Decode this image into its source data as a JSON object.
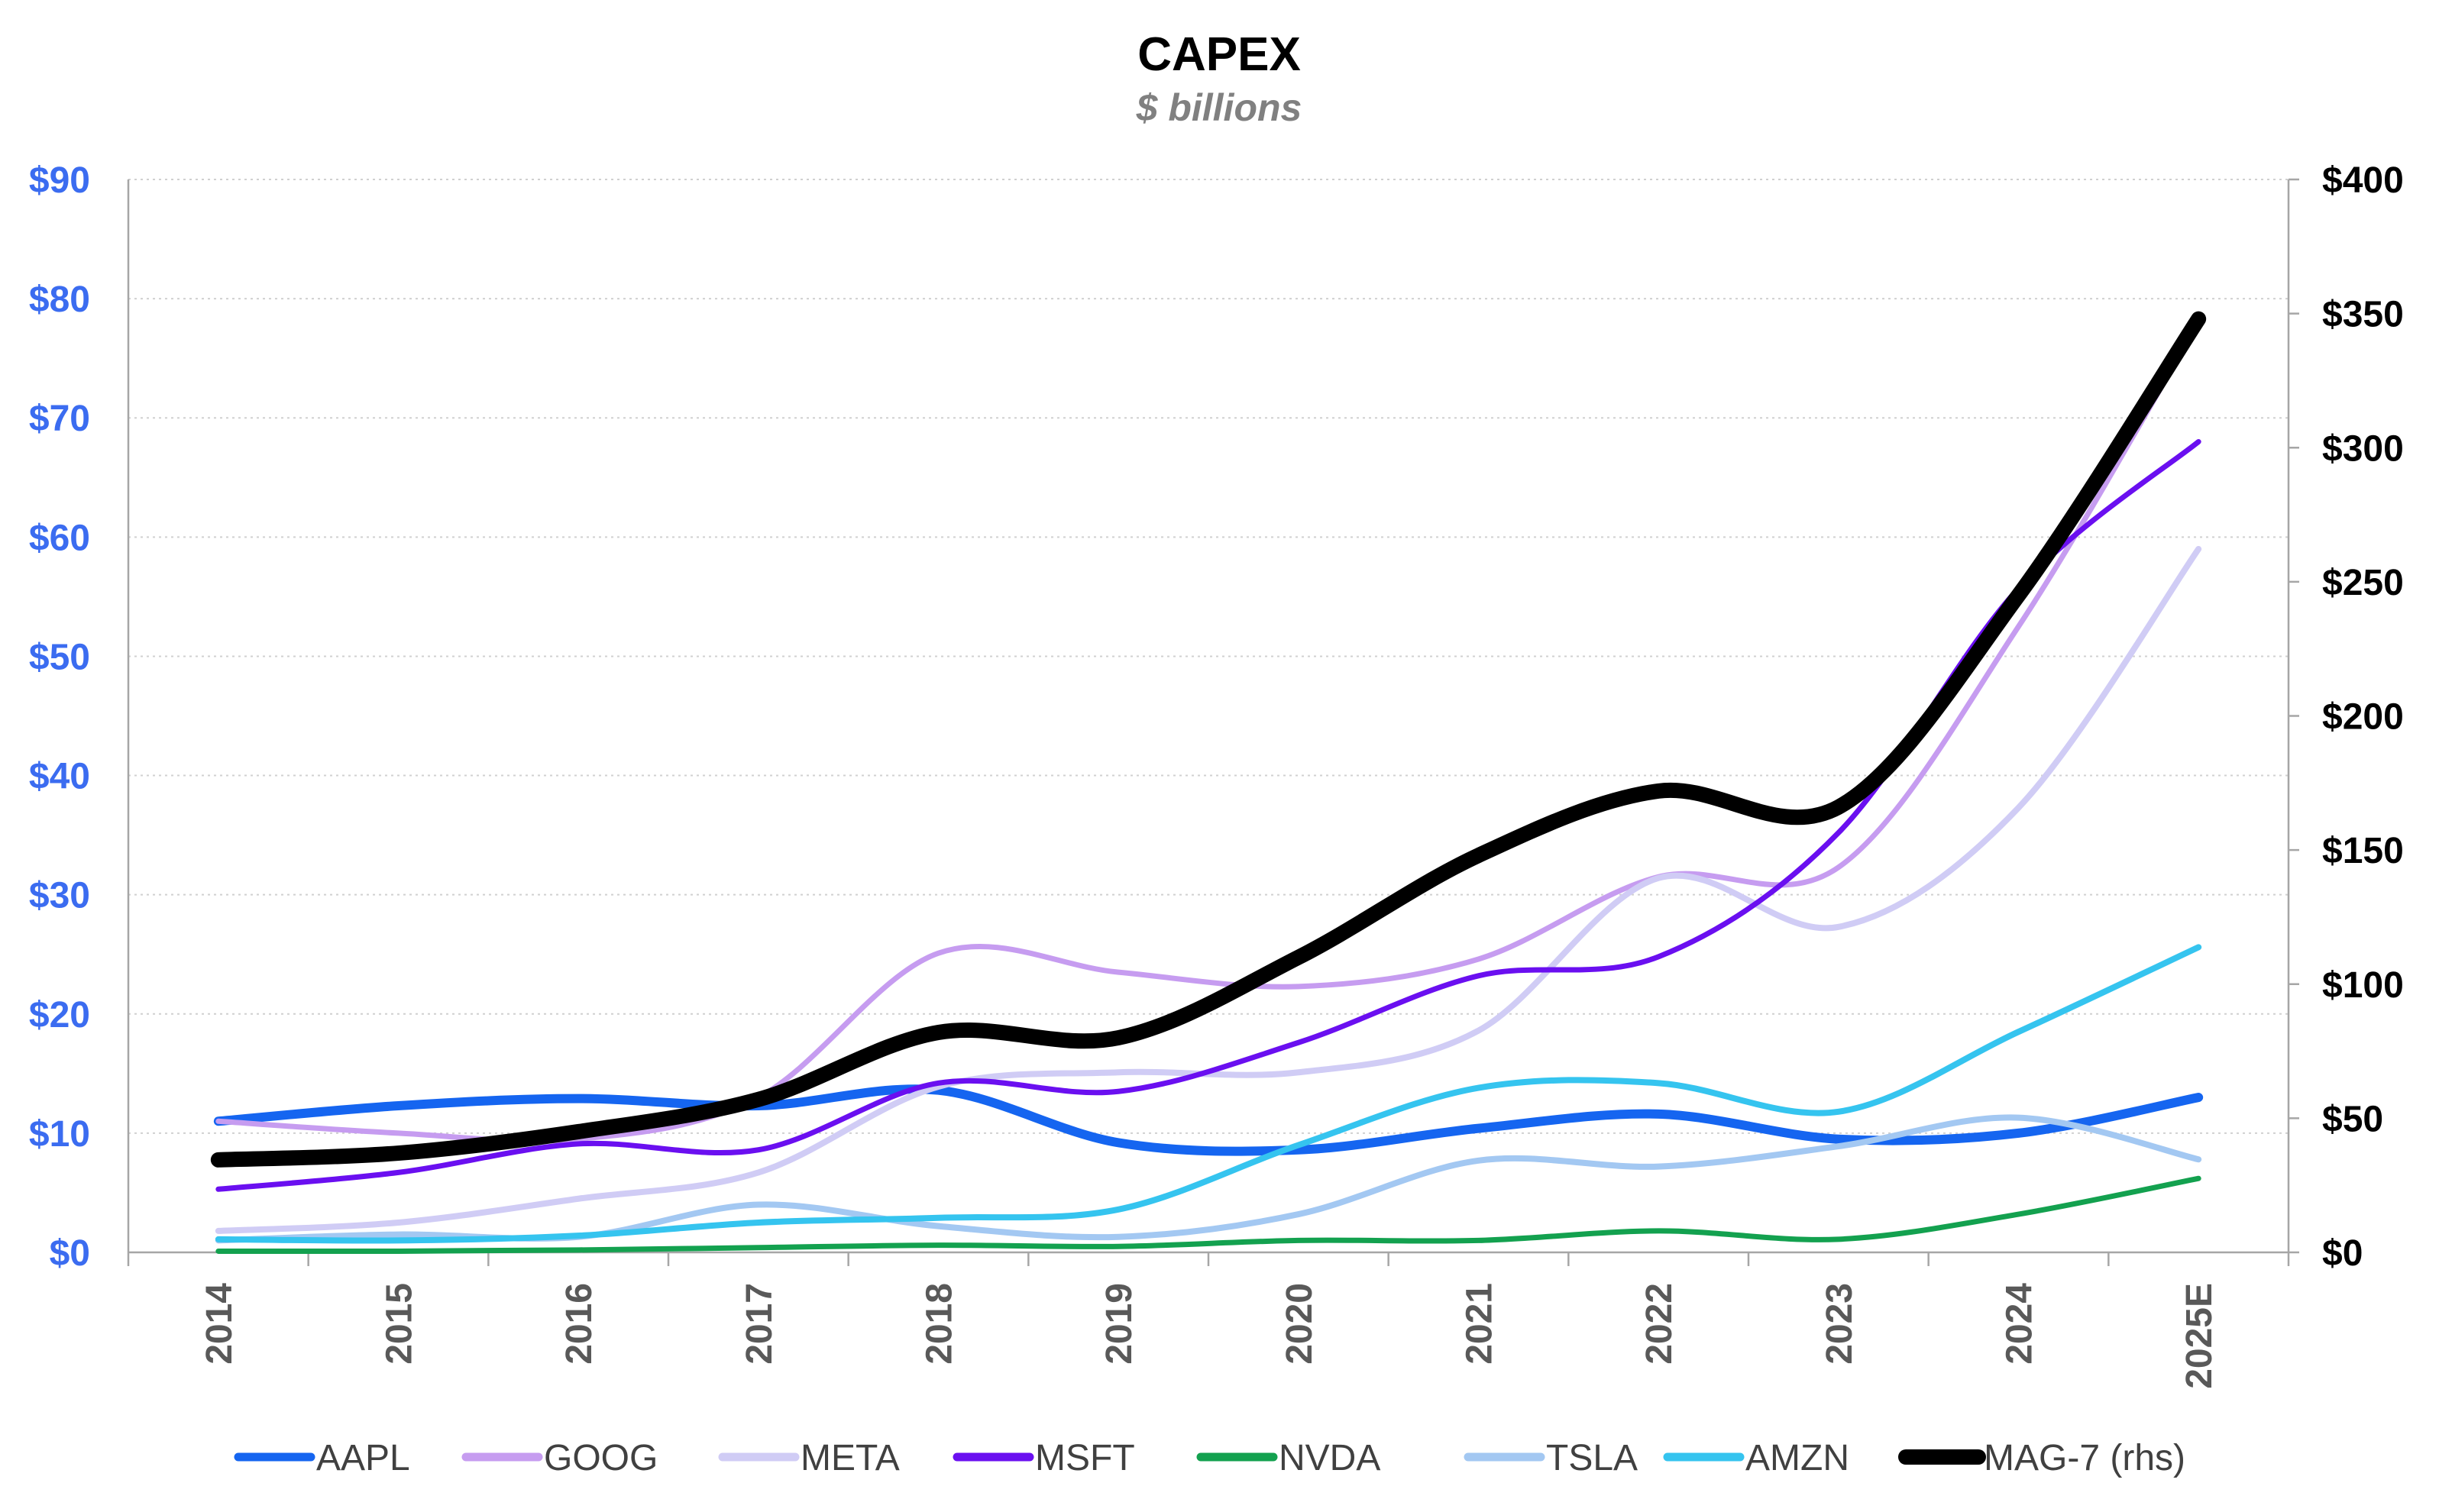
{
  "chart_data": {
    "type": "line",
    "title": "CAPEX",
    "subtitle": "$ billions",
    "categories": [
      "2014",
      "2015",
      "2016",
      "2017",
      "2018",
      "2019",
      "2020",
      "2021",
      "2022",
      "2023",
      "2024",
      "2025E"
    ],
    "left_axis": {
      "min": 0,
      "max": 90,
      "step": 10,
      "tick_labels": [
        "$0",
        "$10",
        "$20",
        "$30",
        "$40",
        "$50",
        "$60",
        "$70",
        "$80",
        "$90"
      ]
    },
    "right_axis": {
      "min": 0,
      "max": 400,
      "step": 50,
      "tick_labels": [
        "$0",
        "$50",
        "$100",
        "$150",
        "$200",
        "$250",
        "$300",
        "$350",
        "$400"
      ]
    },
    "grid": true,
    "legend_position": "bottom",
    "series": [
      {
        "name": "AAPL",
        "axis": "left",
        "color": "#1565f0",
        "width": 12,
        "values": [
          11.0,
          12.3,
          12.9,
          12.3,
          13.6,
          9.2,
          8.6,
          10.4,
          11.6,
          9.5,
          10.0,
          13.0
        ]
      },
      {
        "name": "GOOG",
        "axis": "left",
        "color": "#c69cf0",
        "width": 7,
        "values": [
          11.0,
          10.0,
          9.5,
          13.0,
          25.1,
          23.5,
          22.3,
          24.6,
          31.5,
          32.3,
          52.5,
          78.0
        ]
      },
      {
        "name": "META",
        "axis": "left",
        "color": "#d0ccf5",
        "width": 8,
        "values": [
          1.8,
          2.5,
          4.5,
          6.7,
          13.9,
          15.1,
          15.1,
          18.6,
          31.4,
          27.3,
          37.3,
          59.0
        ]
      },
      {
        "name": "MSFT",
        "axis": "left",
        "color": "#6a0ff0",
        "width": 7,
        "values": [
          5.3,
          6.7,
          9.1,
          8.6,
          14.2,
          13.5,
          17.6,
          23.2,
          24.8,
          35.2,
          55.7,
          68.0
        ]
      },
      {
        "name": "NVDA",
        "axis": "left",
        "color": "#13a14f",
        "width": 7,
        "values": [
          0.1,
          0.1,
          0.2,
          0.4,
          0.6,
          0.5,
          1.0,
          1.0,
          1.8,
          1.1,
          3.2,
          6.2
        ]
      },
      {
        "name": "TSLA",
        "axis": "left",
        "color": "#a3c8f2",
        "width": 8,
        "values": [
          1.0,
          1.5,
          1.3,
          4.0,
          2.2,
          1.3,
          3.2,
          7.7,
          7.2,
          8.9,
          11.3,
          7.8
        ]
      },
      {
        "name": "AMZN",
        "axis": "left",
        "color": "#35c4ef",
        "width": 8,
        "values": [
          1.1,
          1.0,
          1.4,
          2.5,
          2.9,
          3.6,
          9.0,
          13.8,
          14.2,
          11.8,
          18.5,
          25.6
        ]
      },
      {
        "name": "MAG-7 (rhs)",
        "axis": "right",
        "color": "#000000",
        "width": 20,
        "values": [
          34.5,
          37.0,
          45.0,
          57.0,
          82.0,
          80.0,
          110.0,
          148.0,
          172.0,
          166.0,
          245.0,
          348.0
        ]
      }
    ]
  }
}
